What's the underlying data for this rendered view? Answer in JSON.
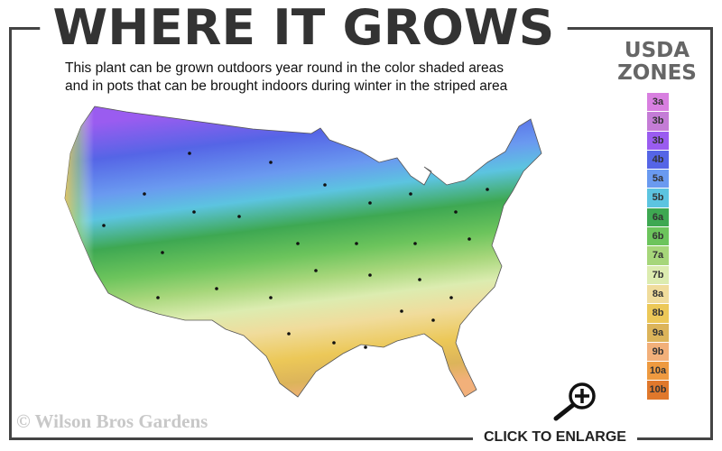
{
  "title": "WHERE IT GROWS",
  "subtitle_lines": [
    "This plant can be grown outdoors year round in the color shaded areas",
    "and in pots that can be brought indoors during winter in the striped area"
  ],
  "legend": {
    "title_lines": [
      "USDA",
      "ZONES"
    ],
    "zones": [
      {
        "label": "3a",
        "color": "#d87fe0"
      },
      {
        "label": "3b",
        "color": "#c47cd6"
      },
      {
        "label": "3b",
        "color": "#9a5cf0"
      },
      {
        "label": "4b",
        "color": "#5565e6"
      },
      {
        "label": "5a",
        "color": "#6a9af0"
      },
      {
        "label": "5b",
        "color": "#5cc4e0"
      },
      {
        "label": "6a",
        "color": "#3ea852"
      },
      {
        "label": "6b",
        "color": "#6cc45c"
      },
      {
        "label": "7a",
        "color": "#a6d67a"
      },
      {
        "label": "7b",
        "color": "#dcecb0"
      },
      {
        "label": "8a",
        "color": "#f0dc9c"
      },
      {
        "label": "8b",
        "color": "#ecc858"
      },
      {
        "label": "9a",
        "color": "#dcb45a"
      },
      {
        "label": "9b",
        "color": "#f2b07a"
      },
      {
        "label": "10a",
        "color": "#ee9a40"
      },
      {
        "label": "10b",
        "color": "#e0782c"
      }
    ]
  },
  "copyright": "© Wilson Bros Gardens",
  "enlarge_label": "CLICK TO ENLARGE",
  "icons": {
    "enlarge": "zoom-in-magnifier-icon"
  }
}
